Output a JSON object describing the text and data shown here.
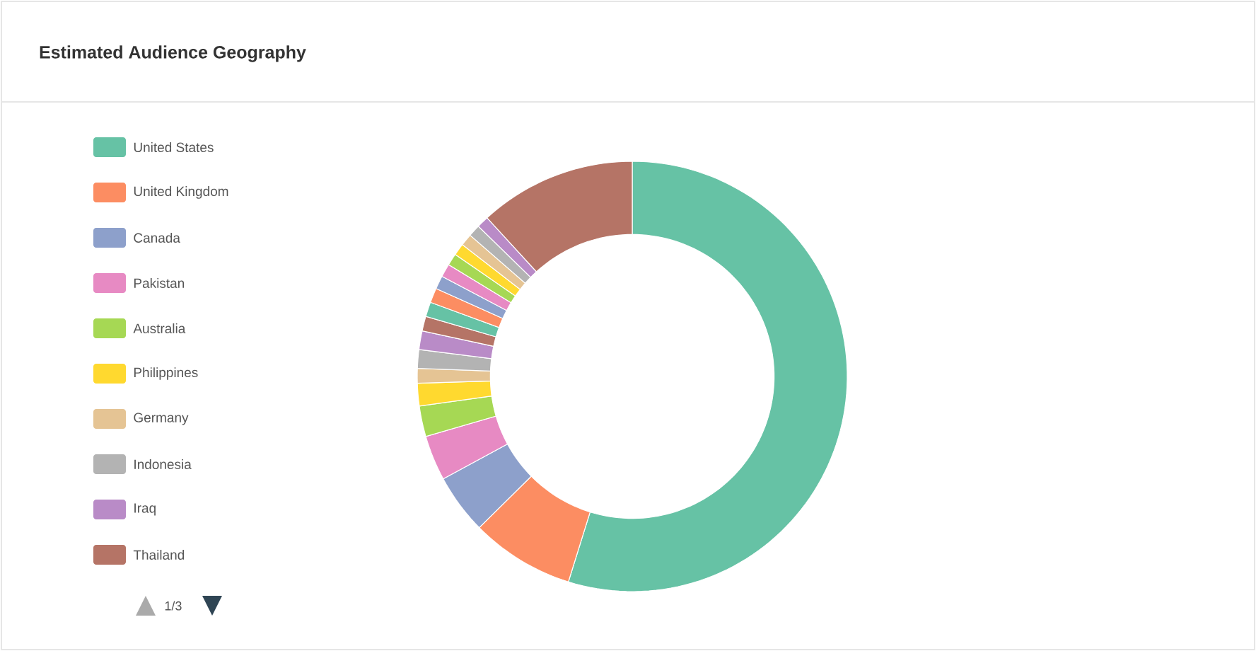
{
  "chart_data": {
    "type": "donut",
    "title": "Estimated Audience Geography",
    "categories": [
      "United States",
      "United Kingdom",
      "Canada",
      "Pakistan",
      "Australia",
      "Philippines",
      "Germany",
      "Indonesia",
      "Iraq",
      "Thailand",
      null,
      null,
      null,
      null,
      null,
      null,
      null,
      null,
      null,
      null
    ],
    "values": [
      54.8,
      7.8,
      4.5,
      3.4,
      2.3,
      1.7,
      1.1,
      1.4,
      1.4,
      1.1,
      1.1,
      1.1,
      1.0,
      1.0,
      0.9,
      0.9,
      0.9,
      0.9,
      0.9,
      11.8
    ],
    "colors": [
      "#66c2a5",
      "#fc8d62",
      "#8da0cb",
      "#e78ac3",
      "#a6d854",
      "#ffd92f",
      "#e5c494",
      "#b3b3b3",
      "#b98bc7",
      "#b57466",
      "#66c2a5",
      "#fc8d62",
      "#8da0cb",
      "#e78ac3",
      "#a6d854",
      "#ffd92f",
      "#e5c494",
      "#b3b3b3",
      "#b98bc7",
      "#b57466"
    ],
    "legend": "top left",
    "annotations": [
      "1/3"
    ]
  }
}
